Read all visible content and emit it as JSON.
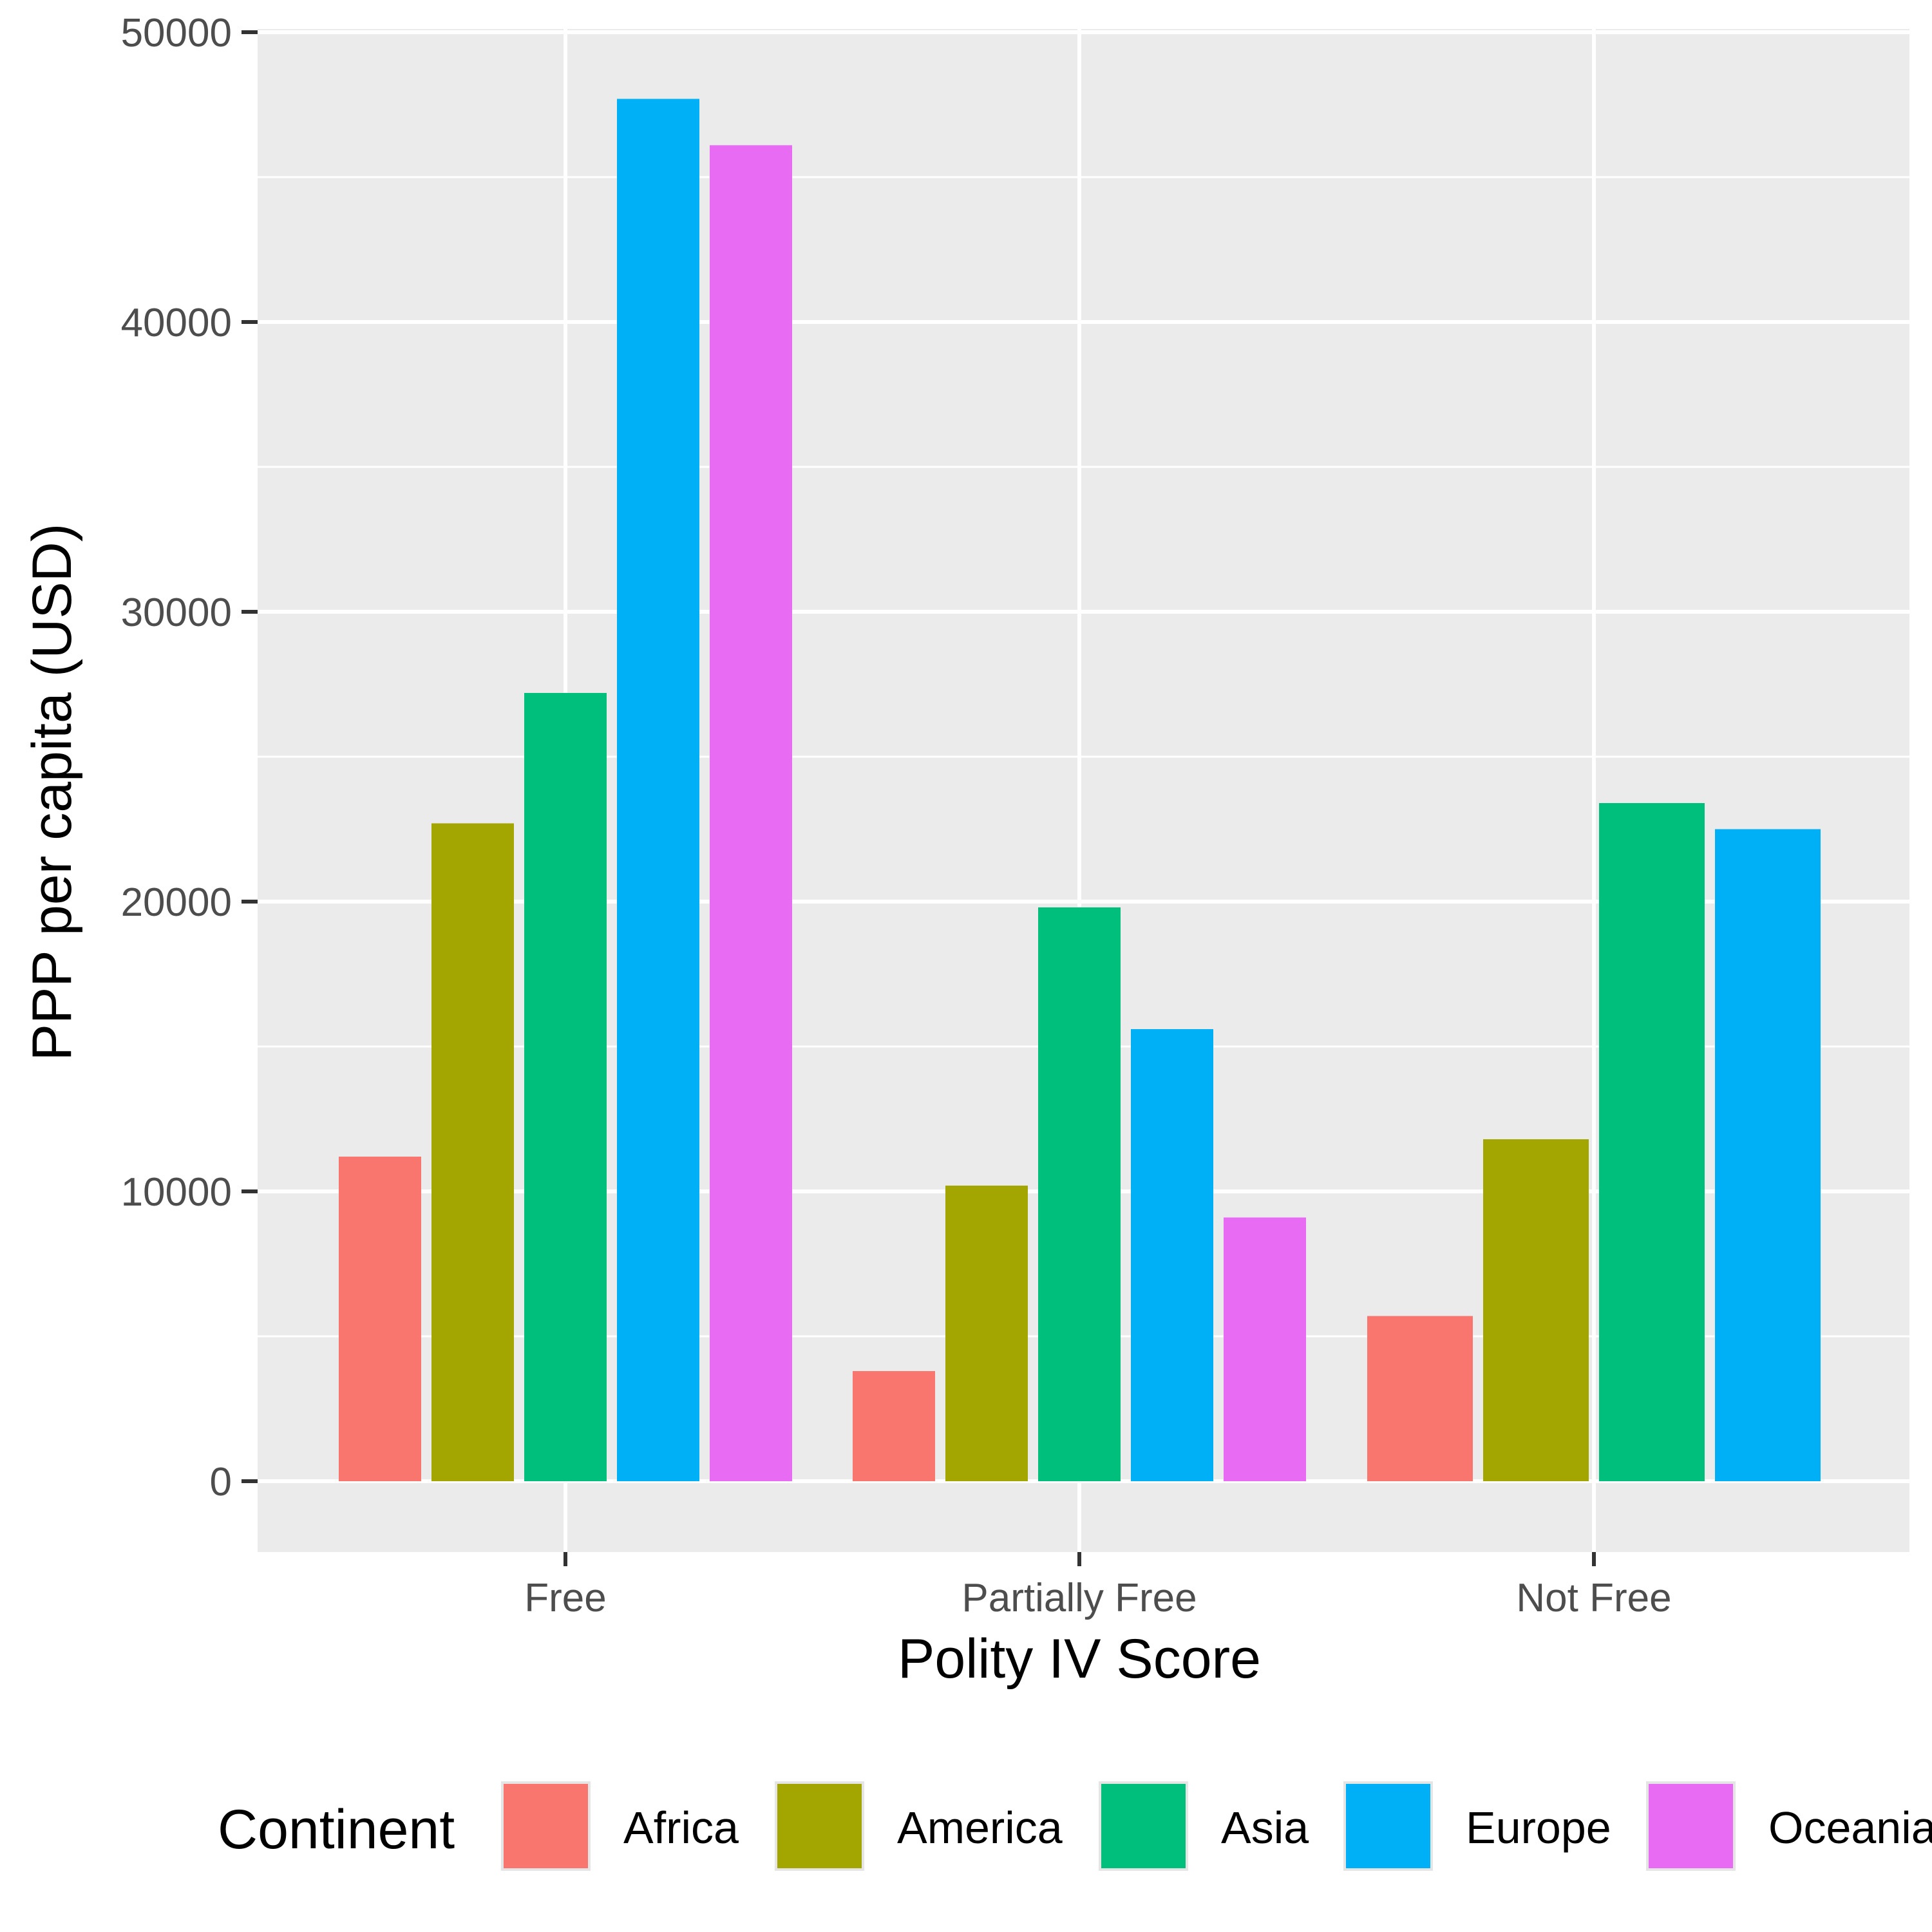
{
  "chart_data": {
    "type": "bar",
    "xlabel": "Polity IV Score",
    "ylabel": "PPP per capita (USD)",
    "categories": [
      "Free",
      "Partially Free",
      "Not Free"
    ],
    "ylim": [
      -2400,
      50000
    ],
    "yticks": [
      0,
      10000,
      20000,
      30000,
      40000,
      50000
    ],
    "ytick_labels": [
      "0",
      "10000",
      "20000",
      "30000",
      "40000",
      "50000"
    ],
    "grid": true,
    "legend": {
      "title": "Continent",
      "position": "bottom"
    },
    "series": [
      {
        "name": "Africa",
        "color": "#F8766D",
        "values": [
          11200,
          3800,
          5700
        ]
      },
      {
        "name": "America",
        "color": "#A3A500",
        "values": [
          22700,
          10200,
          11800
        ]
      },
      {
        "name": "Asia",
        "color": "#00BF7D",
        "values": [
          27200,
          19800,
          23400
        ]
      },
      {
        "name": "Europe",
        "color": "#00B0F6",
        "values": [
          47700,
          15600,
          22500
        ]
      },
      {
        "name": "Oceania",
        "color": "#E76BF3",
        "values": [
          46100,
          9100,
          null
        ]
      }
    ]
  }
}
